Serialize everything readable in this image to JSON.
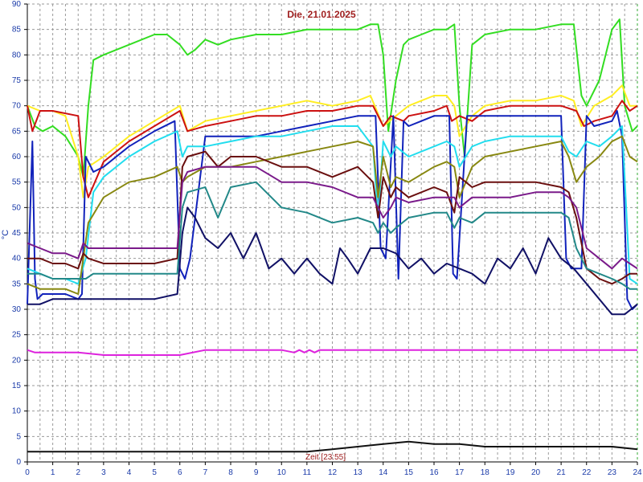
{
  "chart_data": {
    "type": "line",
    "title": "Die, 21.01.2025",
    "xlabel": "Zeit [23:55]",
    "ylabel": "°C",
    "xlim": [
      0,
      24
    ],
    "ylim": [
      0,
      90
    ],
    "x_ticks": [
      0,
      1,
      2,
      3,
      4,
      5,
      6,
      7,
      8,
      9,
      10,
      11,
      12,
      13,
      14,
      15,
      16,
      17,
      18,
      19,
      20,
      21,
      22,
      23,
      24
    ],
    "y_ticks": [
      0,
      5,
      10,
      15,
      20,
      25,
      30,
      35,
      40,
      45,
      50,
      55,
      60,
      65,
      70,
      75,
      80,
      85,
      90
    ],
    "grid": true,
    "series": [
      {
        "color": "#33dd22",
        "x": [
          0,
          0.3,
          0.6,
          1,
          1.5,
          2,
          2.2,
          2.4,
          2.6,
          3,
          4,
          5,
          5.5,
          6,
          6.3,
          6.6,
          7,
          7.5,
          8,
          9,
          10,
          11,
          12,
          13,
          13.5,
          13.8,
          14,
          14.2,
          14.5,
          14.8,
          15,
          15.5,
          16,
          16.5,
          16.8,
          17,
          17.2,
          17.5,
          18,
          19,
          20,
          21,
          21.5,
          21.8,
          22,
          22.5,
          23,
          23.3,
          23.5,
          23.8,
          24
        ],
        "y": [
          70,
          66,
          65,
          66,
          64,
          60,
          56,
          70,
          79,
          80,
          82,
          84,
          84,
          82,
          80,
          81,
          83,
          82,
          83,
          84,
          84,
          85,
          85,
          85,
          86,
          86,
          80,
          65,
          75,
          82,
          83,
          84,
          85,
          85,
          86,
          70,
          60,
          82,
          84,
          85,
          85,
          86,
          86,
          72,
          70,
          75,
          85,
          87,
          70,
          65,
          66
        ]
      },
      {
        "color": "#ffee22",
        "x": [
          0,
          0.5,
          1,
          1.5,
          2,
          2.2,
          2.4,
          3,
          4,
          5,
          6,
          6.3,
          7,
          8,
          9,
          10,
          11,
          12,
          13,
          13.5,
          14,
          14.5,
          15,
          16,
          16.5,
          16.8,
          17,
          17.5,
          18,
          19,
          20,
          21,
          21.5,
          21.8,
          22.3,
          23,
          23.4,
          23.7,
          24
        ],
        "y": [
          70,
          69,
          69,
          68,
          60,
          52,
          58,
          60,
          64,
          67,
          70,
          65,
          67,
          68,
          69,
          70,
          71,
          70,
          71,
          72,
          66,
          68,
          70,
          72,
          72,
          70,
          64,
          68,
          70,
          71,
          71,
          72,
          71,
          66,
          70,
          72,
          74,
          70,
          70
        ]
      },
      {
        "color": "#cc1111",
        "x": [
          0,
          0.2,
          0.5,
          1,
          2,
          2.2,
          2.4,
          3,
          4,
          5,
          6,
          6.3,
          7,
          8,
          9,
          10,
          11,
          12,
          13,
          13.6,
          14,
          14.3,
          14.8,
          15,
          16,
          16.5,
          16.7,
          17,
          17.5,
          18,
          19,
          20,
          21,
          21.6,
          21.9,
          22.3,
          23,
          23.4,
          23.7,
          24
        ],
        "y": [
          70,
          65,
          69,
          69,
          68,
          56,
          52,
          59,
          63,
          66,
          69,
          65,
          66,
          67,
          68,
          68,
          69,
          69,
          70,
          70,
          66,
          68,
          67,
          68,
          69,
          70,
          67,
          68,
          67,
          69,
          70,
          70,
          70,
          69,
          66,
          67,
          68,
          71,
          69,
          70
        ]
      },
      {
        "color": "#1122bb",
        "x": [
          0,
          0.2,
          0.3,
          0.4,
          0.6,
          1,
          1.5,
          2,
          2.15,
          2.3,
          2.6,
          3,
          4,
          5,
          5.8,
          6,
          6.2,
          6.4,
          7,
          8,
          9,
          10,
          11,
          12,
          13,
          13.7,
          13.9,
          14.1,
          14.4,
          14.6,
          14.8,
          15,
          15.5,
          16,
          16.6,
          16.75,
          16.9,
          17.3,
          18,
          19,
          20,
          21,
          21.2,
          21.4,
          21.8,
          22,
          22.3,
          23,
          23.2,
          23.4,
          23.6,
          23.8,
          24
        ],
        "y": [
          31,
          63,
          36,
          32,
          33,
          33,
          33,
          32,
          33,
          60,
          57,
          58,
          62,
          65,
          67,
          38,
          36,
          40,
          64,
          64,
          64,
          65,
          66,
          67,
          68,
          68,
          42,
          40,
          68,
          36,
          67,
          66,
          67,
          68,
          68,
          37,
          36,
          68,
          68,
          68,
          68,
          68,
          40,
          38,
          38,
          68,
          66,
          67,
          69,
          64,
          32,
          30,
          31
        ]
      },
      {
        "color": "#22ddee",
        "x": [
          0,
          0.5,
          1,
          1.5,
          2,
          2.3,
          2.6,
          3,
          4,
          5,
          5.9,
          6.1,
          6.3,
          7,
          8,
          9,
          10,
          11,
          12,
          13,
          13.6,
          13.8,
          14,
          14.3,
          14.5,
          15,
          16,
          16.5,
          16.8,
          17,
          17.5,
          18,
          19,
          20,
          21,
          21.3,
          21.6,
          22,
          22.5,
          23,
          23.4,
          23.7,
          24
        ],
        "y": [
          38,
          37,
          36,
          36,
          35,
          40,
          53,
          56,
          60,
          63,
          65,
          60,
          62,
          62,
          63,
          64,
          64,
          65,
          66,
          66,
          62,
          48,
          63,
          60,
          62,
          60,
          62,
          63,
          62,
          58,
          62,
          63,
          64,
          64,
          64,
          61,
          60,
          63,
          62,
          64,
          66,
          36,
          35
        ]
      },
      {
        "color": "#888811",
        "x": [
          0,
          0.5,
          1,
          1.5,
          2,
          2.2,
          2.4,
          3,
          4,
          5,
          5.9,
          6.1,
          6.3,
          7,
          8,
          9,
          10,
          11,
          12,
          13,
          13.6,
          13.8,
          14,
          14.3,
          14.5,
          15,
          16,
          16.5,
          16.8,
          17,
          17.5,
          18,
          19,
          20,
          21,
          21.3,
          21.6,
          22,
          22.5,
          23,
          23.4,
          23.7,
          24
        ],
        "y": [
          35,
          34,
          34,
          34,
          33,
          40,
          47,
          52,
          55,
          56,
          58,
          55,
          56,
          58,
          58,
          59,
          60,
          61,
          62,
          63,
          62,
          52,
          60,
          54,
          56,
          55,
          58,
          59,
          58,
          52,
          58,
          60,
          61,
          62,
          63,
          60,
          55,
          58,
          60,
          63,
          64,
          60,
          59
        ]
      },
      {
        "color": "#6a0f0f",
        "x": [
          0,
          0.5,
          1,
          1.5,
          2,
          2.2,
          2.4,
          3,
          4,
          5,
          5.9,
          6.1,
          6.3,
          7,
          7.5,
          8,
          9,
          10,
          11,
          12,
          13,
          13.6,
          13.8,
          14,
          14.3,
          14.5,
          15,
          16,
          16.5,
          16.8,
          17,
          17.5,
          18,
          19,
          20,
          21,
          21.3,
          21.6,
          22,
          22.5,
          23,
          23.4,
          23.7,
          24
        ],
        "y": [
          40,
          40,
          39,
          39,
          38,
          41,
          40,
          39,
          39,
          39,
          40,
          58,
          60,
          61,
          58,
          60,
          60,
          58,
          58,
          56,
          58,
          55,
          48,
          56,
          52,
          54,
          52,
          54,
          53,
          49,
          56,
          54,
          55,
          55,
          55,
          54,
          53,
          48,
          38,
          36,
          35,
          36,
          37,
          37
        ]
      },
      {
        "color": "#7a1a8a",
        "x": [
          0,
          0.5,
          1,
          1.5,
          2,
          2.2,
          2.4,
          3,
          4,
          5,
          5.9,
          6.1,
          6.3,
          7,
          8,
          9,
          10,
          11,
          12,
          13,
          13.6,
          13.8,
          14,
          14.3,
          14.5,
          15,
          16,
          16.5,
          16.8,
          17,
          17.5,
          18,
          19,
          20,
          21,
          21.3,
          21.6,
          22,
          22.5,
          23,
          23.4,
          23.7,
          24
        ],
        "y": [
          43,
          42,
          41,
          41,
          40,
          43,
          42,
          42,
          42,
          42,
          42,
          55,
          57,
          58,
          58,
          58,
          55,
          55,
          54,
          52,
          52,
          50,
          48,
          50,
          52,
          51,
          52,
          52,
          52,
          50,
          52,
          52,
          52,
          53,
          53,
          52,
          50,
          42,
          40,
          38,
          40,
          39,
          38
        ]
      },
      {
        "color": "#228888",
        "x": [
          0,
          0.5,
          1,
          1.5,
          2,
          2.3,
          2.6,
          3,
          4,
          5,
          5.9,
          6.1,
          6.3,
          7,
          7.5,
          8,
          9,
          10,
          11,
          12,
          13,
          13.6,
          13.8,
          14,
          14.3,
          14.5,
          15,
          16,
          16.5,
          16.8,
          17,
          17.5,
          18,
          19,
          20,
          21,
          21.3,
          21.6,
          22,
          22.5,
          23,
          23.4,
          23.7,
          24
        ],
        "y": [
          37,
          37,
          36,
          36,
          36,
          36,
          37,
          37,
          37,
          37,
          37,
          50,
          53,
          54,
          48,
          54,
          55,
          50,
          49,
          47,
          48,
          47,
          45,
          47,
          45,
          46,
          48,
          49,
          49,
          46,
          48,
          47,
          49,
          49,
          49,
          49,
          48,
          42,
          38,
          37,
          36,
          35,
          34,
          34
        ]
      },
      {
        "color": "#111166",
        "x": [
          0,
          0.5,
          1,
          1.5,
          2,
          3,
          4,
          5,
          5.9,
          6.1,
          6.3,
          6.6,
          7,
          7.5,
          8,
          8.5,
          9,
          9.5,
          10,
          10.5,
          11,
          11.5,
          12,
          12.3,
          12.6,
          13,
          13.5,
          14,
          14.5,
          15,
          15.5,
          16,
          16.5,
          17,
          17.5,
          18,
          18.5,
          19,
          19.5,
          20,
          20.5,
          21,
          21.5,
          22,
          22.5,
          23,
          23.5,
          24
        ],
        "y": [
          31,
          31,
          32,
          32,
          32,
          32,
          32,
          32,
          33,
          45,
          50,
          48,
          44,
          42,
          45,
          40,
          45,
          38,
          40,
          37,
          40,
          37,
          35,
          42,
          40,
          37,
          42,
          42,
          41,
          38,
          40,
          37,
          39,
          38,
          37,
          35,
          40,
          38,
          42,
          37,
          44,
          40,
          38,
          35,
          32,
          29,
          29,
          31
        ]
      },
      {
        "color": "#dd22dd",
        "x": [
          0,
          0.3,
          1,
          2,
          3,
          4,
          5,
          6,
          7,
          8,
          9,
          10,
          10.5,
          10.7,
          10.9,
          11.1,
          11.3,
          11.5,
          12,
          13,
          14,
          15,
          16,
          17,
          18,
          19,
          20,
          21,
          22,
          23,
          24
        ],
        "y": [
          22,
          21.5,
          21.5,
          21.5,
          21,
          21,
          21,
          21,
          22,
          22,
          22,
          22,
          21.5,
          22,
          21.5,
          22,
          21.5,
          22,
          22,
          22,
          22,
          22,
          22,
          22,
          22,
          22,
          22,
          22,
          22,
          22,
          22
        ]
      },
      {
        "color": "#111111",
        "x": [
          0,
          1,
          2,
          3,
          4,
          5,
          6,
          7,
          8,
          9,
          10,
          11,
          12,
          13,
          14,
          15,
          16,
          17,
          18,
          19,
          20,
          21,
          22,
          23,
          24
        ],
        "y": [
          2,
          2,
          2,
          2,
          2,
          2,
          2,
          2,
          2,
          2,
          2,
          2,
          2.5,
          3,
          3.5,
          4,
          3.5,
          3.5,
          3,
          3,
          3,
          3,
          3,
          3,
          2.5
        ]
      }
    ]
  }
}
